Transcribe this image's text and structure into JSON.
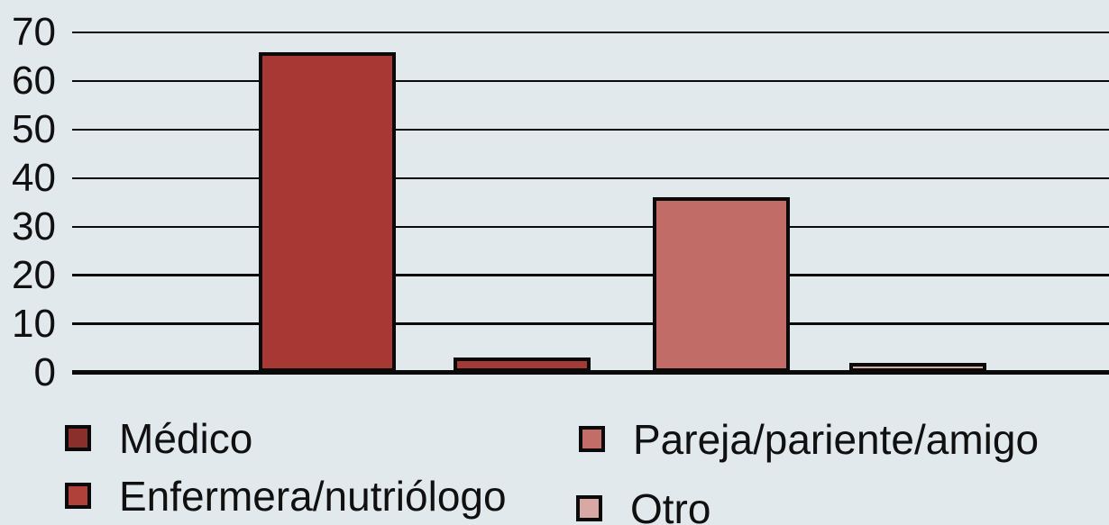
{
  "figure": {
    "background_color": "#e2e9ed",
    "line_color": "#0a0a0a",
    "text_color": "#101010"
  },
  "chart_data": {
    "type": "bar",
    "categories": [
      "Médico",
      "Enfermera/nutriólogo",
      "Pareja/pariente/amigo",
      "Otro"
    ],
    "values": [
      66,
      3,
      36,
      2
    ],
    "bar_colors": [
      "#a73833",
      "#a23a35",
      "#c16c67",
      "#d9aba6"
    ],
    "legend_colors": [
      "#8a2f2b",
      "#b0413a",
      "#c26d68",
      "#d8a8a4"
    ],
    "bar_border_color": "#0a0a0a",
    "title": "",
    "xlabel": "",
    "ylabel": "",
    "ylim": [
      0,
      70
    ],
    "yticks": [
      0,
      10,
      20,
      30,
      40,
      50,
      60,
      70
    ],
    "grid": "horizontal-only",
    "x_tick_labels": "none",
    "legend_position": "bottom-two-columns"
  }
}
